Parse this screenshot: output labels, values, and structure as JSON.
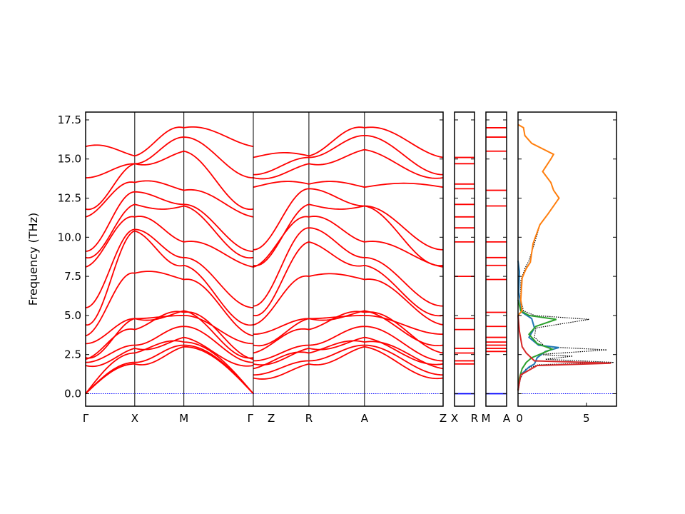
{
  "chart_data": {
    "type": "line",
    "ylabel": "Frequency (THz)",
    "ylim": [
      -0.8,
      18.0
    ],
    "yticks": [
      "0.0",
      "2.5",
      "5.0",
      "7.5",
      "10.0",
      "12.5",
      "15.0",
      "17.5"
    ],
    "yticks_values": [
      0,
      2.5,
      5,
      7.5,
      10,
      12.5,
      15,
      17.5
    ],
    "band_color": "#ff0000",
    "zero_line_color": "#0000ff",
    "dos_total_color": "#000000",
    "panels": [
      {
        "segments": [
          {
            "from": "Γ",
            "to": "X",
            "length": 0.5
          },
          {
            "from": "X",
            "to": "M",
            "length": 0.5
          },
          {
            "from": "M",
            "to": "Γ",
            "length": 0.707
          }
        ],
        "xtick_labels": [
          "Γ",
          "X",
          "M",
          "Γ"
        ],
        "gamma_end_values": [
          0,
          0,
          0,
          2.0,
          2.2,
          2.3,
          11.3,
          11.8,
          13.8,
          15.8,
          16.1
        ]
      },
      {
        "segments": [
          {
            "from": "Z",
            "to": "R",
            "length": 0.5
          },
          {
            "from": "R",
            "to": "A",
            "length": 0.5
          },
          {
            "from": "A",
            "to": "Z",
            "length": 0.707
          }
        ],
        "xtick_labels": [
          "Z",
          "R",
          "A",
          "Z"
        ]
      },
      {
        "segments": [
          {
            "from": "X",
            "to": "R",
            "length": 0.21
          }
        ],
        "xtick_labels": [
          "X",
          "R"
        ],
        "levels": [
          0,
          1.9,
          2.1,
          2.6,
          2.9,
          4.1,
          4.8,
          7.5,
          9.7,
          10.6,
          11.3,
          12.1,
          13.1,
          13.4,
          14.7,
          15.1
        ]
      },
      {
        "segments": [
          {
            "from": "M",
            "to": "A",
            "length": 0.21
          }
        ],
        "xtick_labels": [
          "M",
          "A"
        ],
        "levels": [
          0,
          2.7,
          2.9,
          3.1,
          3.3,
          3.6,
          4.3,
          5.2,
          7.3,
          8.2,
          8.7,
          9.7,
          12.0,
          13.0,
          15.5,
          16.4,
          17.0
        ]
      }
    ],
    "bands": [
      {
        "gamma": 0.0,
        "x": 1.9,
        "m": 3.0,
        "z": 1.0,
        "r": 1.9,
        "a": 3.0
      },
      {
        "gamma": 0.0,
        "x": 2.0,
        "m": 3.1,
        "z": 1.2,
        "r": 2.1,
        "a": 3.1
      },
      {
        "gamma": 0.0,
        "x": 2.6,
        "m": 3.3,
        "z": 1.6,
        "r": 2.6,
        "a": 3.3
      },
      {
        "gamma": 1.8,
        "x": 2.9,
        "m": 3.6,
        "z": 1.9,
        "r": 2.9,
        "a": 3.6
      },
      {
        "gamma": 2.0,
        "x": 3.1,
        "m": 4.3,
        "z": 2.1,
        "r": 3.1,
        "a": 4.3
      },
      {
        "gamma": 2.2,
        "x": 4.1,
        "m": 5.2,
        "z": 2.6,
        "r": 4.1,
        "a": 5.2
      },
      {
        "gamma": 2.3,
        "x": 4.8,
        "m": 5.3,
        "z": 3.1,
        "r": 4.8,
        "a": 5.3
      },
      {
        "gamma": 3.2,
        "x": 4.8,
        "m": 5.0,
        "z": 3.8,
        "r": 4.8,
        "a": 5.0
      },
      {
        "gamma": 3.7,
        "x": 7.7,
        "m": 7.3,
        "z": 4.4,
        "r": 7.5,
        "a": 7.3
      },
      {
        "gamma": 4.4,
        "x": 10.4,
        "m": 8.2,
        "z": 5.0,
        "r": 9.7,
        "a": 8.2
      },
      {
        "gamma": 5.5,
        "x": 10.5,
        "m": 8.7,
        "z": 5.6,
        "r": 10.6,
        "a": 8.7
      },
      {
        "gamma": 8.1,
        "x": 11.3,
        "m": 9.7,
        "z": 8.1,
        "r": 11.3,
        "a": 9.7
      },
      {
        "gamma": 8.7,
        "x": 12.1,
        "m": 12.0,
        "z": 8.2,
        "r": 12.1,
        "a": 12.0
      },
      {
        "gamma": 9.1,
        "x": 12.9,
        "m": 12.1,
        "z": 9.2,
        "r": 13.1,
        "a": 12.0
      },
      {
        "gamma": 11.3,
        "x": 13.5,
        "m": 13.0,
        "z": 13.2,
        "r": 13.4,
        "a": 13.2
      },
      {
        "gamma": 11.8,
        "x": 14.7,
        "m": 15.5,
        "z": 13.8,
        "r": 14.7,
        "a": 15.6
      },
      {
        "gamma": 13.8,
        "x": 14.7,
        "m": 16.4,
        "z": 14.0,
        "r": 15.1,
        "a": 16.5
      },
      {
        "gamma": 15.8,
        "x": 15.2,
        "m": 17.0,
        "z": 15.1,
        "r": 15.2,
        "a": 17.0
      }
    ],
    "dos": {
      "xlim": [
        0,
        7.2
      ],
      "xticks": [
        "0",
        "5"
      ],
      "xticks_values": [
        0,
        5
      ],
      "series": [
        {
          "color": "#000000",
          "style": "dotted",
          "points": [
            [
              0.0,
              0.4
            ],
            [
              0.1,
              0.8
            ],
            [
              0.3,
              1.2
            ],
            [
              0.6,
              1.6
            ],
            [
              1.5,
              1.85
            ],
            [
              7.0,
              2.0
            ],
            [
              2.0,
              2.2
            ],
            [
              4.0,
              2.4
            ],
            [
              1.5,
              2.5
            ],
            [
              6.5,
              2.8
            ],
            [
              2.0,
              3.0
            ],
            [
              1.2,
              3.6
            ],
            [
              1.3,
              4.2
            ],
            [
              5.2,
              4.75
            ],
            [
              1.2,
              5.0
            ],
            [
              0.4,
              5.3
            ],
            [
              0.2,
              6.0
            ],
            [
              0.2,
              7.2
            ],
            [
              0.5,
              8.0
            ],
            [
              0.8,
              8.5
            ],
            [
              1.2,
              9.6
            ],
            [
              1.6,
              10.8
            ],
            [
              2.2,
              11.5
            ],
            [
              3.0,
              12.5
            ],
            [
              2.6,
              13.0
            ],
            [
              2.4,
              13.5
            ],
            [
              1.8,
              14.2
            ],
            [
              2.4,
              15.0
            ],
            [
              2.6,
              15.3
            ],
            [
              1.0,
              16.0
            ],
            [
              0.5,
              16.5
            ],
            [
              0.4,
              17.0
            ],
            [
              0.0,
              17.2
            ]
          ]
        },
        {
          "color": "#1f77b4",
          "style": "solid",
          "points": [
            [
              0.0,
              0.2
            ],
            [
              0.2,
              1.2
            ],
            [
              0.8,
              1.7
            ],
            [
              1.2,
              1.9
            ],
            [
              1.4,
              2.3
            ],
            [
              2.0,
              2.7
            ],
            [
              3.0,
              2.95
            ],
            [
              1.5,
              3.1
            ],
            [
              0.8,
              3.6
            ],
            [
              1.2,
              4.2
            ],
            [
              1.0,
              4.8
            ],
            [
              0.3,
              5.2
            ],
            [
              0.05,
              6.5
            ],
            [
              0.1,
              7.8
            ],
            [
              0.0,
              8.5
            ]
          ]
        },
        {
          "color": "#2ca02c",
          "style": "solid",
          "points": [
            [
              0.0,
              0.2
            ],
            [
              0.1,
              1.0
            ],
            [
              0.3,
              1.6
            ],
            [
              0.6,
              2.0
            ],
            [
              1.0,
              2.3
            ],
            [
              2.5,
              2.85
            ],
            [
              1.4,
              3.2
            ],
            [
              0.8,
              3.8
            ],
            [
              1.3,
              4.3
            ],
            [
              2.8,
              4.75
            ],
            [
              0.8,
              5.0
            ],
            [
              0.2,
              5.3
            ],
            [
              0.0,
              6.0
            ]
          ]
        },
        {
          "color": "#d62728",
          "style": "solid",
          "points": [
            [
              0.0,
              0.2
            ],
            [
              0.2,
              1.2
            ],
            [
              1.4,
              1.8
            ],
            [
              6.8,
              1.95
            ],
            [
              1.2,
              2.1
            ],
            [
              0.6,
              2.6
            ],
            [
              0.3,
              3.0
            ],
            [
              0.1,
              4.0
            ],
            [
              0.0,
              5.0
            ]
          ]
        },
        {
          "color": "#ff7f0e",
          "style": "solid",
          "points": [
            [
              0.0,
              5.0
            ],
            [
              0.3,
              5.3
            ],
            [
              0.2,
              6.0
            ],
            [
              0.3,
              7.4
            ],
            [
              0.6,
              8.0
            ],
            [
              0.9,
              8.4
            ],
            [
              1.1,
              9.6
            ],
            [
              1.6,
              10.8
            ],
            [
              2.2,
              11.5
            ],
            [
              3.0,
              12.5
            ],
            [
              2.6,
              13.0
            ],
            [
              2.4,
              13.5
            ],
            [
              1.8,
              14.2
            ],
            [
              2.4,
              15.0
            ],
            [
              2.6,
              15.3
            ],
            [
              1.0,
              16.0
            ],
            [
              0.5,
              16.5
            ],
            [
              0.4,
              17.0
            ],
            [
              0.0,
              17.2
            ]
          ]
        }
      ]
    }
  }
}
